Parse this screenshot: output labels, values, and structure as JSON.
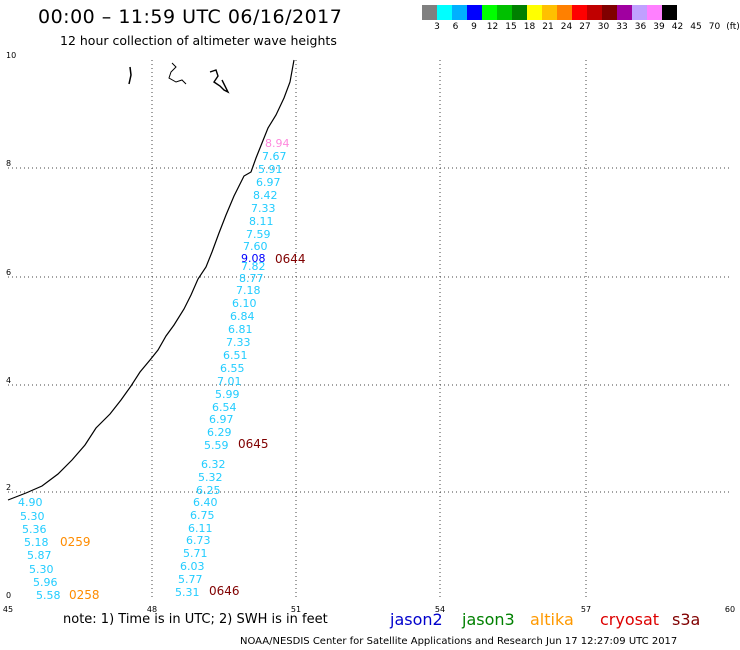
{
  "header": {
    "title": "00:00 – 11:59 UTC 06/16/2017",
    "subtitle": "12 hour collection of altimeter wave heights"
  },
  "legend": {
    "colors": [
      "#808080",
      "#00ffff",
      "#00b0ff",
      "#0000ff",
      "#00ff00",
      "#00c000",
      "#008000",
      "#ffff00",
      "#ffc000",
      "#ff8000",
      "#ff0000",
      "#c00000",
      "#800000",
      "#a000a0",
      "#c0a0ff",
      "#ff80ff",
      "#000000"
    ],
    "labels": [
      "3",
      "6",
      "9",
      "12",
      "15",
      "18",
      "21",
      "24",
      "27",
      "30",
      "33",
      "36",
      "39",
      "42",
      "45",
      "70",
      "(ft)"
    ]
  },
  "axes": {
    "x_ticks": [
      "45",
      "48",
      "51",
      "54",
      "57",
      "60"
    ],
    "y_ticks": [
      "0",
      "2",
      "4",
      "6",
      "8",
      "10"
    ]
  },
  "swh_labels": [
    {
      "text": "8.94",
      "color": "#ff88dd"
    },
    {
      "text": "7.67",
      "color": "#22ccff"
    },
    {
      "text": "5.91",
      "color": "#22ccff"
    },
    {
      "text": "6.97",
      "color": "#22ccff"
    },
    {
      "text": "8.42",
      "color": "#22ccff"
    },
    {
      "text": "7.33",
      "color": "#22ccff"
    },
    {
      "text": "8.11",
      "color": "#22ccff"
    },
    {
      "text": "7.59",
      "color": "#22ccff"
    },
    {
      "text": "7.60",
      "color": "#22ccff"
    },
    {
      "text": "9.08",
      "color": "#0000ff"
    },
    {
      "text": "7.82",
      "color": "#22ccff"
    },
    {
      "text": "8.77",
      "color": "#22ccff"
    },
    {
      "text": "7.18",
      "color": "#22ccff"
    },
    {
      "text": "6.10",
      "color": "#22ccff"
    },
    {
      "text": "6.84",
      "color": "#22ccff"
    },
    {
      "text": "6.81",
      "color": "#22ccff"
    },
    {
      "text": "7.33",
      "color": "#22ccff"
    },
    {
      "text": "6.51",
      "color": "#22ccff"
    },
    {
      "text": "6.55",
      "color": "#22ccff"
    },
    {
      "text": "7.01",
      "color": "#22ccff"
    },
    {
      "text": "5.99",
      "color": "#22ccff"
    },
    {
      "text": "6.54",
      "color": "#22ccff"
    },
    {
      "text": "6.97",
      "color": "#22ccff"
    },
    {
      "text": "6.29",
      "color": "#22ccff"
    },
    {
      "text": "5.59",
      "color": "#22ccff"
    },
    {
      "text": "6.32",
      "color": "#22ccff"
    },
    {
      "text": "5.32",
      "color": "#22ccff"
    },
    {
      "text": "6.25",
      "color": "#22ccff"
    },
    {
      "text": "6.40",
      "color": "#22ccff"
    },
    {
      "text": "6.75",
      "color": "#22ccff"
    },
    {
      "text": "6.11",
      "color": "#22ccff"
    },
    {
      "text": "6.73",
      "color": "#22ccff"
    },
    {
      "text": "5.71",
      "color": "#22ccff"
    },
    {
      "text": "6.03",
      "color": "#22ccff"
    },
    {
      "text": "5.77",
      "color": "#22ccff"
    },
    {
      "text": "5.31",
      "color": "#22ccff"
    },
    {
      "text": "4.90",
      "color": "#22ccff"
    },
    {
      "text": "5.30",
      "color": "#22ccff"
    },
    {
      "text": "5.36",
      "color": "#22ccff"
    },
    {
      "text": "5.18",
      "color": "#22ccff"
    },
    {
      "text": "5.87",
      "color": "#22ccff"
    },
    {
      "text": "5.30",
      "color": "#22ccff"
    },
    {
      "text": "5.96",
      "color": "#22ccff"
    },
    {
      "text": "5.58",
      "color": "#22ccff"
    }
  ],
  "time_labels": [
    {
      "text": "0644",
      "color": "#800000"
    },
    {
      "text": "0645",
      "color": "#800000"
    },
    {
      "text": "0646",
      "color": "#800000"
    },
    {
      "text": "0259",
      "color": "#ff8c00"
    },
    {
      "text": "0258",
      "color": "#ff8c00"
    }
  ],
  "footer": {
    "note": "note:  1) Time is in UTC;  2) SWH is in feet",
    "satellites": [
      {
        "name": "jason2",
        "color": "#0000cc"
      },
      {
        "name": "jason3",
        "color": "#008000"
      },
      {
        "name": "altika",
        "color": "#ff9900"
      },
      {
        "name": "cryosat",
        "color": "#dd0000"
      },
      {
        "name": "s3a",
        "color": "#800000"
      }
    ],
    "credit": "NOAA/NESDIS Center for Satellite Applications and Research    Jun 17 12:27:09 UTC 2017"
  }
}
